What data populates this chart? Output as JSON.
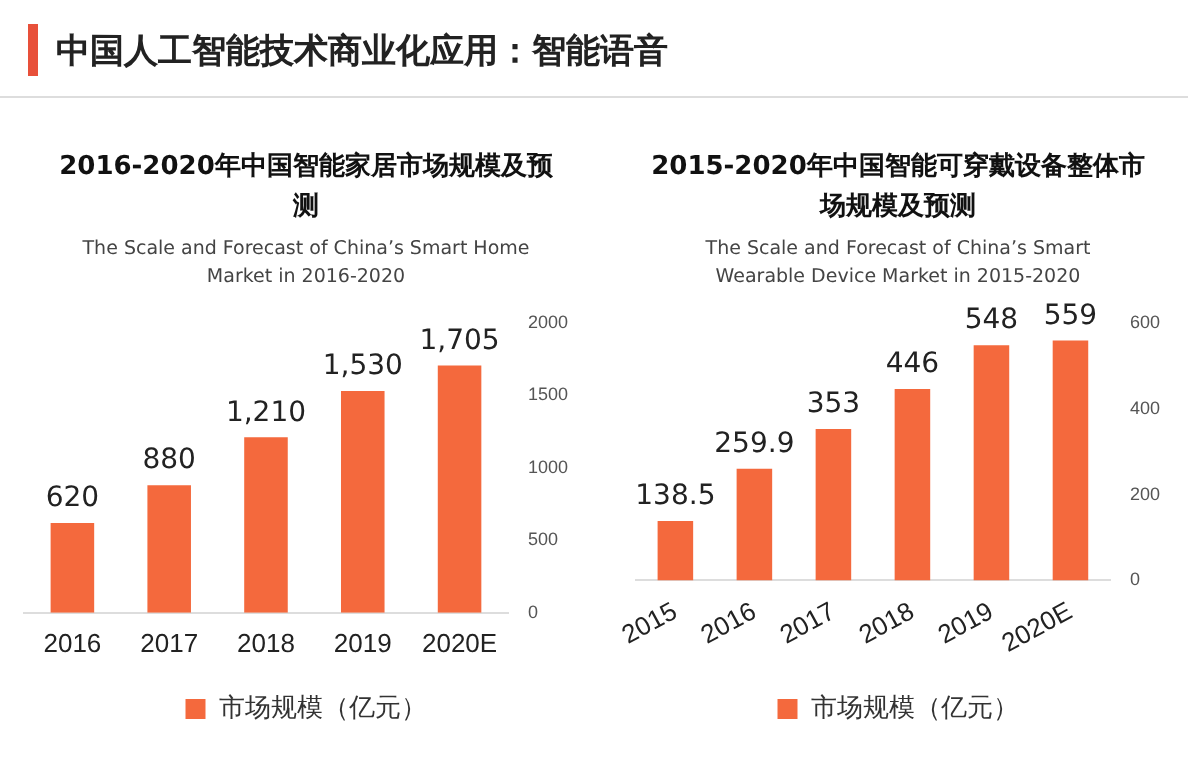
{
  "chart_data": [
    {
      "type": "other",
      "title": "中国人工智能技术商业化应用：智能语音"
    },
    {
      "type": "bar",
      "title": "2016-2020年中国智能家居市场规模及预测",
      "subtitle": "The Scale and Forecast of China’s Smart Home Market in 2016-2020",
      "categories": [
        "2016",
        "2017",
        "2018",
        "2019",
        "2020E"
      ],
      "series": [
        {
          "name": "市场规模（亿元）",
          "color": "#f4693d",
          "values": [
            620,
            880,
            1210,
            1530,
            1705
          ],
          "value_labels": [
            "620",
            "880",
            "1,210",
            "1,530",
            "1,705"
          ]
        }
      ],
      "ylim": [
        0,
        2000
      ],
      "yticks": [
        0,
        500,
        1000,
        1500,
        2000
      ],
      "grid": false,
      "legend": "bottom"
    },
    {
      "type": "bar",
      "title": "2015-2020年中国智能可穿戴设备整体市场规模及预测",
      "subtitle": "The Scale and Forecast of China’s Smart Wearable Device Market in 2015-2020",
      "categories": [
        "2015",
        "2016",
        "2017",
        "2018",
        "2019",
        "2020E"
      ],
      "series": [
        {
          "name": "市场规模（亿元）",
          "color": "#f4693d",
          "values": [
            138.5,
            259.9,
            353,
            446,
            548,
            559
          ],
          "value_labels": [
            "138.5",
            "259.9",
            "353",
            "446",
            "548",
            "559"
          ]
        }
      ],
      "ylim": [
        0,
        600
      ],
      "yticks": [
        0,
        200,
        400,
        600
      ],
      "grid": false,
      "legend": "bottom"
    }
  ]
}
